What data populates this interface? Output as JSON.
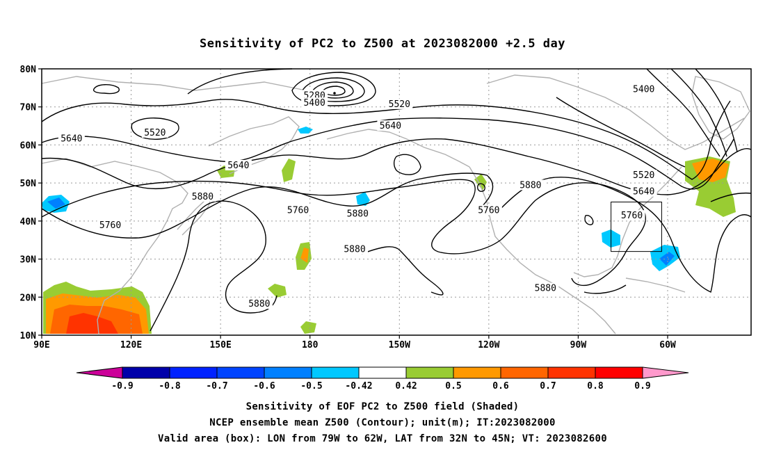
{
  "title": "Sensitivity of PC2 to Z500 at 2023082000 +2.5 day",
  "map": {
    "lat_labels": [
      "80N",
      "70N",
      "60N",
      "50N",
      "40N",
      "30N",
      "20N",
      "10N"
    ],
    "lon_labels": [
      "90E",
      "120E",
      "150E",
      "180",
      "150W",
      "120W",
      "90W",
      "60W"
    ],
    "contour_levels": [
      "5280",
      "5400",
      "5520",
      "5640",
      "5760",
      "5880"
    ],
    "contour_labels": [
      {
        "text": "5280",
        "lon": 181.5,
        "lat": 73.0
      },
      {
        "text": "5400",
        "lon": 181.5,
        "lat": 71.0
      },
      {
        "text": "5400",
        "lon": 292,
        "lat": 74.6
      },
      {
        "text": "5520",
        "lon": 210,
        "lat": 70.7
      },
      {
        "text": "5520",
        "lon": 128,
        "lat": 63.2
      },
      {
        "text": "5520",
        "lon": 292,
        "lat": 52.0
      },
      {
        "text": "5640",
        "lon": 100,
        "lat": 61.6
      },
      {
        "text": "5640",
        "lon": 207,
        "lat": 65.0
      },
      {
        "text": "5640",
        "lon": 156,
        "lat": 54.6
      },
      {
        "text": "5640",
        "lon": 292,
        "lat": 47.7
      },
      {
        "text": "5760",
        "lon": 113,
        "lat": 38.9
      },
      {
        "text": "5760",
        "lon": 176,
        "lat": 42.8
      },
      {
        "text": "5760",
        "lon": 240,
        "lat": 42.8
      },
      {
        "text": "5760",
        "lon": 288,
        "lat": 41.4
      },
      {
        "text": "5880",
        "lon": 144,
        "lat": 46.4
      },
      {
        "text": "5880",
        "lon": 196,
        "lat": 41.9
      },
      {
        "text": "5880",
        "lon": 254,
        "lat": 49.4
      },
      {
        "text": "5880",
        "lon": 195,
        "lat": 32.6
      },
      {
        "text": "5880",
        "lon": 163,
        "lat": 18.2
      },
      {
        "text": "5880",
        "lon": 259,
        "lat": 22.3
      }
    ],
    "valid_box": {
      "lon_west": 281,
      "lon_east": 298,
      "lat_south": 32,
      "lat_north": 45
    }
  },
  "colorbar": {
    "labels": [
      "-0.9",
      "-0.8",
      "-0.7",
      "-0.6",
      "-0.5",
      "-0.42",
      "0.42",
      "0.5",
      "0.6",
      "0.7",
      "0.8",
      "0.9"
    ],
    "colors": [
      "#cc0099",
      "#0000aa",
      "#0022ff",
      "#0044ff",
      "#0080ff",
      "#00c8ff",
      "#ffffff",
      "#99cc33",
      "#ff9900",
      "#ff6600",
      "#ff3300",
      "#ff0000",
      "#ff99cc"
    ]
  },
  "captions": {
    "line1": "Sensitivity of EOF PC2 to Z500 field (Shaded)",
    "line2": "NCEP ensemble mean Z500 (Contour); unit(m); IT:2023082000",
    "line3": "Valid area (box): LON from 79W to 62W, LAT from 32N to 45N; VT: 2023082600"
  }
}
